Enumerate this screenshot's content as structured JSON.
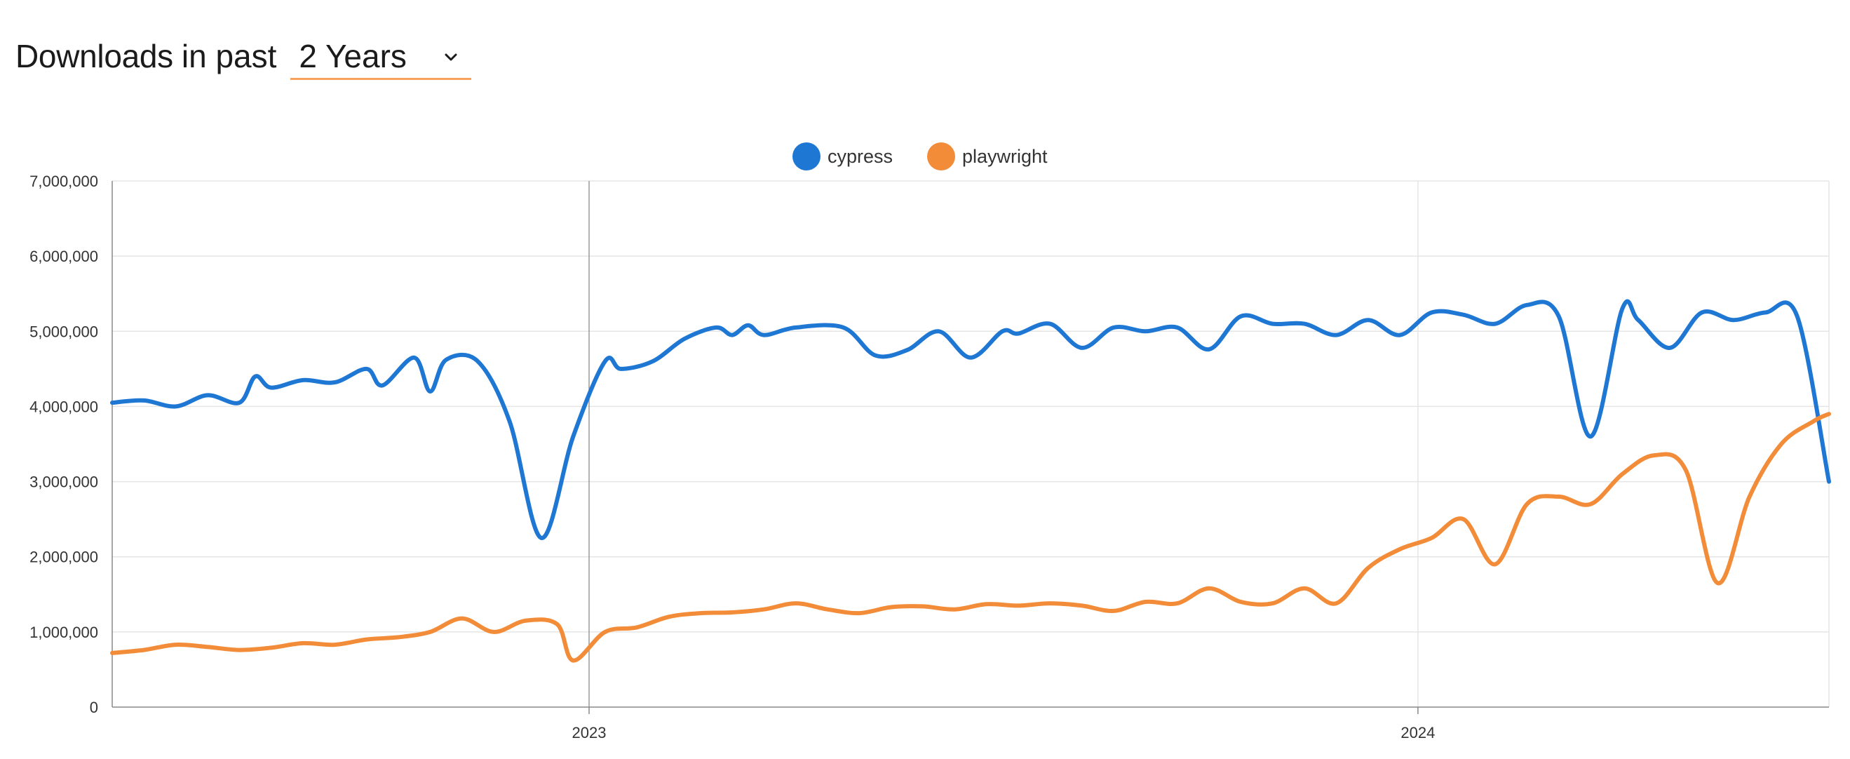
{
  "header": {
    "title_strong": "Downloads",
    "title_light": "in past",
    "period": {
      "selected": "2 Years"
    }
  },
  "colors": {
    "cypress": "#1f77d4",
    "playwright": "#f28c38",
    "grid": "#e5e5e5",
    "axis": "#888888"
  },
  "chart_data": {
    "type": "line",
    "title": "",
    "xlabel": "",
    "ylabel": "",
    "x_range": [
      "2022-06-05",
      "2024-06-30"
    ],
    "ylim": [
      0,
      7000000
    ],
    "y_ticks": [
      0,
      1000000,
      2000000,
      3000000,
      4000000,
      5000000,
      6000000,
      7000000
    ],
    "y_tick_labels": [
      "0",
      "1,000,000",
      "2,000,000",
      "3,000,000",
      "4,000,000",
      "5,000,000",
      "6,000,000",
      "7,000,000"
    ],
    "x_ticks": [
      "2023-01-01",
      "2024-01-01"
    ],
    "x_tick_labels": [
      "2023",
      "2024"
    ],
    "grid": true,
    "legend": "top-center",
    "series": [
      {
        "name": "cypress",
        "points": [
          [
            "2022-06-05",
            4050000
          ],
          [
            "2022-06-19",
            4080000
          ],
          [
            "2022-07-03",
            4000000
          ],
          [
            "2022-07-17",
            4150000
          ],
          [
            "2022-07-31",
            4050000
          ],
          [
            "2022-08-07",
            4400000
          ],
          [
            "2022-08-14",
            4250000
          ],
          [
            "2022-08-28",
            4350000
          ],
          [
            "2022-09-11",
            4320000
          ],
          [
            "2022-09-25",
            4500000
          ],
          [
            "2022-10-02",
            4280000
          ],
          [
            "2022-10-16",
            4650000
          ],
          [
            "2022-10-23",
            4200000
          ],
          [
            "2022-10-30",
            4620000
          ],
          [
            "2022-11-13",
            4600000
          ],
          [
            "2022-11-27",
            3800000
          ],
          [
            "2022-12-11",
            2250000
          ],
          [
            "2022-12-25",
            3600000
          ],
          [
            "2023-01-08",
            4600000
          ],
          [
            "2023-01-15",
            4500000
          ],
          [
            "2023-01-29",
            4600000
          ],
          [
            "2023-02-12",
            4900000
          ],
          [
            "2023-02-26",
            5050000
          ],
          [
            "2023-03-05",
            4950000
          ],
          [
            "2023-03-12",
            5080000
          ],
          [
            "2023-03-19",
            4950000
          ],
          [
            "2023-04-02",
            5050000
          ],
          [
            "2023-04-23",
            5050000
          ],
          [
            "2023-05-07",
            4680000
          ],
          [
            "2023-05-21",
            4750000
          ],
          [
            "2023-06-04",
            5000000
          ],
          [
            "2023-06-18",
            4650000
          ],
          [
            "2023-07-02",
            5000000
          ],
          [
            "2023-07-09",
            4970000
          ],
          [
            "2023-07-23",
            5100000
          ],
          [
            "2023-08-06",
            4780000
          ],
          [
            "2023-08-20",
            5050000
          ],
          [
            "2023-09-03",
            5000000
          ],
          [
            "2023-09-17",
            5050000
          ],
          [
            "2023-10-01",
            4760000
          ],
          [
            "2023-10-15",
            5200000
          ],
          [
            "2023-10-29",
            5100000
          ],
          [
            "2023-11-12",
            5100000
          ],
          [
            "2023-11-26",
            4950000
          ],
          [
            "2023-12-10",
            5150000
          ],
          [
            "2023-12-24",
            4950000
          ],
          [
            "2024-01-07",
            5250000
          ],
          [
            "2024-01-21",
            5220000
          ],
          [
            "2024-02-04",
            5100000
          ],
          [
            "2024-02-18",
            5350000
          ],
          [
            "2024-03-03",
            5200000
          ],
          [
            "2024-03-17",
            3600000
          ],
          [
            "2024-03-31",
            5300000
          ],
          [
            "2024-04-07",
            5150000
          ],
          [
            "2024-04-21",
            4780000
          ],
          [
            "2024-05-05",
            5250000
          ],
          [
            "2024-05-19",
            5150000
          ],
          [
            "2024-06-02",
            5250000
          ],
          [
            "2024-06-16",
            5200000
          ],
          [
            "2024-06-30",
            3000000
          ]
        ]
      },
      {
        "name": "playwright",
        "points": [
          [
            "2022-06-05",
            720000
          ],
          [
            "2022-06-19",
            760000
          ],
          [
            "2022-07-03",
            830000
          ],
          [
            "2022-07-17",
            800000
          ],
          [
            "2022-07-31",
            760000
          ],
          [
            "2022-08-14",
            790000
          ],
          [
            "2022-08-28",
            850000
          ],
          [
            "2022-09-11",
            830000
          ],
          [
            "2022-09-25",
            900000
          ],
          [
            "2022-10-09",
            930000
          ],
          [
            "2022-10-23",
            1000000
          ],
          [
            "2022-11-06",
            1180000
          ],
          [
            "2022-11-20",
            1000000
          ],
          [
            "2022-12-04",
            1150000
          ],
          [
            "2022-12-18",
            1100000
          ],
          [
            "2022-12-25",
            620000
          ],
          [
            "2023-01-08",
            1000000
          ],
          [
            "2023-01-22",
            1060000
          ],
          [
            "2023-02-05",
            1200000
          ],
          [
            "2023-02-19",
            1250000
          ],
          [
            "2023-03-05",
            1260000
          ],
          [
            "2023-03-19",
            1300000
          ],
          [
            "2023-04-02",
            1380000
          ],
          [
            "2023-04-16",
            1300000
          ],
          [
            "2023-04-30",
            1250000
          ],
          [
            "2023-05-14",
            1330000
          ],
          [
            "2023-05-28",
            1340000
          ],
          [
            "2023-06-11",
            1300000
          ],
          [
            "2023-06-25",
            1370000
          ],
          [
            "2023-07-09",
            1350000
          ],
          [
            "2023-07-23",
            1380000
          ],
          [
            "2023-08-06",
            1350000
          ],
          [
            "2023-08-20",
            1280000
          ],
          [
            "2023-09-03",
            1400000
          ],
          [
            "2023-09-17",
            1380000
          ],
          [
            "2023-10-01",
            1580000
          ],
          [
            "2023-10-15",
            1400000
          ],
          [
            "2023-10-29",
            1380000
          ],
          [
            "2023-11-12",
            1580000
          ],
          [
            "2023-11-26",
            1380000
          ],
          [
            "2023-12-10",
            1850000
          ],
          [
            "2023-12-24",
            2100000
          ],
          [
            "2024-01-07",
            2250000
          ],
          [
            "2024-01-21",
            2500000
          ],
          [
            "2024-02-04",
            1900000
          ],
          [
            "2024-02-18",
            2700000
          ],
          [
            "2024-03-03",
            2800000
          ],
          [
            "2024-03-17",
            2700000
          ],
          [
            "2024-03-31",
            3100000
          ],
          [
            "2024-04-14",
            3350000
          ],
          [
            "2024-04-28",
            3150000
          ],
          [
            "2024-05-12",
            1650000
          ],
          [
            "2024-05-26",
            2800000
          ],
          [
            "2024-06-09",
            3500000
          ],
          [
            "2024-06-23",
            3800000
          ],
          [
            "2024-06-30",
            3900000
          ]
        ]
      }
    ]
  }
}
